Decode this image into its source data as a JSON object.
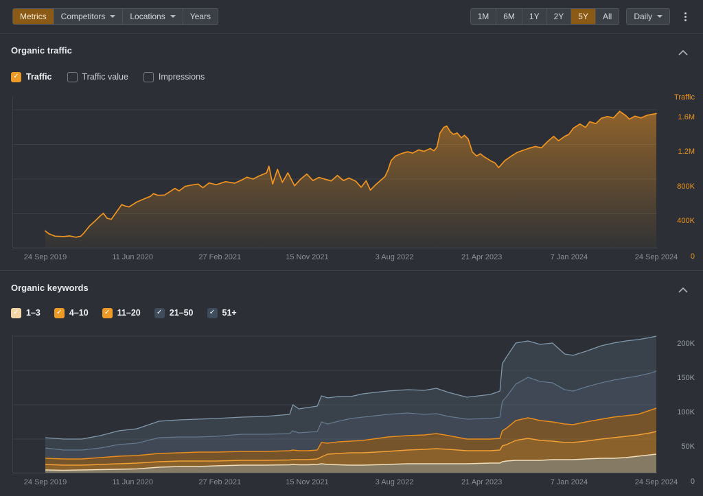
{
  "toolbar": {
    "left_tabs": [
      {
        "label": "Metrics",
        "active": true,
        "caret": false
      },
      {
        "label": "Competitors",
        "active": false,
        "caret": true
      },
      {
        "label": "Locations",
        "active": false,
        "caret": true
      },
      {
        "label": "Years",
        "active": false,
        "caret": false
      }
    ],
    "ranges": [
      {
        "label": "1M",
        "active": false
      },
      {
        "label": "6M",
        "active": false
      },
      {
        "label": "1Y",
        "active": false
      },
      {
        "label": "2Y",
        "active": false
      },
      {
        "label": "5Y",
        "active": true
      },
      {
        "label": "All",
        "active": false
      }
    ],
    "interval_label": "Daily",
    "kebab_icon": "kebab-menu",
    "active_color": "#8a5a16"
  },
  "traffic_section": {
    "title": "Organic traffic",
    "collapse_icon": "chevron-up",
    "checkboxes": [
      {
        "label": "Traffic",
        "checked": true,
        "color": "#ee9a27"
      },
      {
        "label": "Traffic value",
        "checked": false,
        "color": ""
      },
      {
        "label": "Impressions",
        "checked": false,
        "color": ""
      }
    ]
  },
  "keywords_section": {
    "title": "Organic keywords",
    "collapse_icon": "chevron-up",
    "checkboxes": [
      {
        "label": "1–3",
        "checked": true,
        "color": "#f3d6a6"
      },
      {
        "label": "4–10",
        "checked": true,
        "color": "#ee9a27"
      },
      {
        "label": "11–20",
        "checked": true,
        "color": "#ee9a27"
      },
      {
        "label": "21–50",
        "checked": true,
        "color": "#3e4c5b"
      },
      {
        "label": "51+",
        "checked": true,
        "color": "#3e4c5b"
      }
    ]
  },
  "chart_data": [
    {
      "type": "area",
      "title": "Organic traffic",
      "axis_title": "Traffic",
      "accent_color": "#ee9620",
      "grid": true,
      "legend_position": "none",
      "x_tick_labels": [
        "24 Sep 2019",
        "11 Jun 2020",
        "27 Feb 2021",
        "15 Nov 2021",
        "3 Aug 2022",
        "21 Apr 2023",
        "7 Jan 2024",
        "24 Sep 2024"
      ],
      "y_tick_labels": [
        "1.6M",
        "1.2M",
        "800K",
        "400K"
      ],
      "y_tick_values": [
        1600,
        1200,
        800,
        400
      ],
      "zero_label": "0",
      "unit": "thousands",
      "ylim": [
        0,
        1758
      ],
      "series": [
        {
          "name": "Traffic",
          "color": "#f09421",
          "fill_gradient_top": "rgba(240,148,33,0.5)",
          "fill_gradient_bottom": "rgba(240,148,33,0.03)",
          "points": [
            [
              0,
              200
            ],
            [
              0.006,
              168
            ],
            [
              0.016,
              140
            ],
            [
              0.03,
              136
            ],
            [
              0.04,
              143
            ],
            [
              0.05,
              128
            ],
            [
              0.058,
              140
            ],
            [
              0.063,
              176
            ],
            [
              0.072,
              255
            ],
            [
              0.082,
              320
            ],
            [
              0.09,
              375
            ],
            [
              0.095,
              405
            ],
            [
              0.101,
              348
            ],
            [
              0.108,
              335
            ],
            [
              0.116,
              415
            ],
            [
              0.125,
              505
            ],
            [
              0.131,
              488
            ],
            [
              0.137,
              478
            ],
            [
              0.15,
              535
            ],
            [
              0.163,
              575
            ],
            [
              0.172,
              600
            ],
            [
              0.177,
              632
            ],
            [
              0.184,
              612
            ],
            [
              0.195,
              615
            ],
            [
              0.204,
              655
            ],
            [
              0.212,
              692
            ],
            [
              0.219,
              663
            ],
            [
              0.229,
              716
            ],
            [
              0.239,
              730
            ],
            [
              0.25,
              742
            ],
            [
              0.258,
              700
            ],
            [
              0.268,
              755
            ],
            [
              0.28,
              735
            ],
            [
              0.295,
              770
            ],
            [
              0.31,
              752
            ],
            [
              0.322,
              790
            ],
            [
              0.33,
              822
            ],
            [
              0.34,
              800
            ],
            [
              0.35,
              836
            ],
            [
              0.362,
              870
            ],
            [
              0.366,
              948
            ],
            [
              0.372,
              742
            ],
            [
              0.38,
              912
            ],
            [
              0.388,
              762
            ],
            [
              0.397,
              872
            ],
            [
              0.408,
              722
            ],
            [
              0.418,
              800
            ],
            [
              0.428,
              858
            ],
            [
              0.438,
              782
            ],
            [
              0.448,
              820
            ],
            [
              0.457,
              800
            ],
            [
              0.468,
              778
            ],
            [
              0.478,
              842
            ],
            [
              0.488,
              782
            ],
            [
              0.497,
              812
            ],
            [
              0.508,
              775
            ],
            [
              0.517,
              705
            ],
            [
              0.525,
              780
            ],
            [
              0.532,
              672
            ],
            [
              0.54,
              730
            ],
            [
              0.55,
              792
            ],
            [
              0.556,
              828
            ],
            [
              0.561,
              905
            ],
            [
              0.566,
              1012
            ],
            [
              0.573,
              1065
            ],
            [
              0.582,
              1092
            ],
            [
              0.593,
              1115
            ],
            [
              0.601,
              1100
            ],
            [
              0.611,
              1136
            ],
            [
              0.62,
              1120
            ],
            [
              0.63,
              1152
            ],
            [
              0.636,
              1126
            ],
            [
              0.641,
              1168
            ],
            [
              0.646,
              1330
            ],
            [
              0.652,
              1395
            ],
            [
              0.657,
              1412
            ],
            [
              0.663,
              1345
            ],
            [
              0.668,
              1315
            ],
            [
              0.674,
              1332
            ],
            [
              0.681,
              1276
            ],
            [
              0.686,
              1306
            ],
            [
              0.692,
              1262
            ],
            [
              0.699,
              1112
            ],
            [
              0.706,
              1066
            ],
            [
              0.712,
              1092
            ],
            [
              0.718,
              1058
            ],
            [
              0.724,
              1032
            ],
            [
              0.729,
              1010
            ],
            [
              0.736,
              986
            ],
            [
              0.742,
              932
            ],
            [
              0.752,
              1012
            ],
            [
              0.762,
              1062
            ],
            [
              0.772,
              1106
            ],
            [
              0.782,
              1132
            ],
            [
              0.792,
              1156
            ],
            [
              0.802,
              1176
            ],
            [
              0.812,
              1160
            ],
            [
              0.822,
              1232
            ],
            [
              0.832,
              1292
            ],
            [
              0.84,
              1242
            ],
            [
              0.85,
              1292
            ],
            [
              0.857,
              1316
            ],
            [
              0.864,
              1386
            ],
            [
              0.875,
              1436
            ],
            [
              0.884,
              1396
            ],
            [
              0.891,
              1462
            ],
            [
              0.901,
              1440
            ],
            [
              0.91,
              1502
            ],
            [
              0.92,
              1522
            ],
            [
              0.93,
              1506
            ],
            [
              0.94,
              1582
            ],
            [
              0.95,
              1532
            ],
            [
              0.956,
              1492
            ],
            [
              0.965,
              1526
            ],
            [
              0.975,
              1506
            ],
            [
              0.985,
              1536
            ],
            [
              1,
              1556
            ]
          ]
        }
      ]
    },
    {
      "type": "area",
      "stacked": true,
      "title": "Organic keywords",
      "grid": true,
      "legend_position": "none",
      "x_tick_labels": [
        "24 Sep 2019",
        "11 Jun 2020",
        "27 Feb 2021",
        "15 Nov 2021",
        "3 Aug 2022",
        "21 Apr 2023",
        "7 Jan 2024",
        "24 Sep 2024"
      ],
      "y_tick_labels": [
        "200K",
        "150K",
        "100K",
        "50K"
      ],
      "y_tick_values": [
        200,
        150,
        100,
        50
      ],
      "zero_label": "0",
      "unit": "thousands",
      "ylim": [
        0,
        202
      ],
      "label_color": "#9aa1a7",
      "x": [
        0,
        0.03,
        0.06,
        0.09,
        0.12,
        0.15,
        0.186,
        0.22,
        0.25,
        0.28,
        0.3216,
        0.36,
        0.4,
        0.405,
        0.415,
        0.43,
        0.445,
        0.452,
        0.462,
        0.48,
        0.5,
        0.52,
        0.56,
        0.5932,
        0.62,
        0.64,
        0.66,
        0.69,
        0.7284,
        0.744,
        0.748,
        0.755,
        0.77,
        0.79,
        0.81,
        0.83,
        0.85,
        0.8637,
        0.885,
        0.91,
        0.93,
        0.95,
        0.97,
        0.99,
        1
      ],
      "series": [
        {
          "name": "1–3",
          "line_color": "#f2debb",
          "fill_color": "rgba(242,214,160,0.45)",
          "cumulative": [
            5,
            4.5,
            5,
            5.5,
            6,
            6.5,
            9,
            10,
            10,
            11,
            12,
            12,
            12.5,
            13,
            12.5,
            12.5,
            13,
            14,
            13,
            12.5,
            12,
            12,
            13,
            14,
            14,
            14,
            14,
            14,
            15,
            15,
            17,
            18,
            19,
            19,
            19,
            20,
            20,
            20,
            21,
            22,
            22,
            23,
            25,
            27,
            28
          ]
        },
        {
          "name": "4–10",
          "line_color": "#f2a035",
          "fill_color": "rgba(240,150,30,0.48)",
          "cumulative": [
            13,
            12,
            12,
            13,
            14,
            15,
            17,
            18,
            18,
            18,
            19,
            19,
            19.5,
            20,
            20,
            20,
            21,
            24,
            28,
            29,
            30,
            30,
            32,
            34,
            35,
            36,
            35,
            33,
            33,
            34,
            40,
            42,
            48,
            51,
            48,
            47,
            45,
            45,
            47,
            50,
            52,
            54,
            56,
            59,
            61
          ]
        },
        {
          "name": "11–20",
          "line_color": "#e98d1d",
          "fill_color": "rgba(237,144,28,0.38)",
          "cumulative": [
            22,
            21,
            21,
            23,
            25,
            26,
            29,
            30,
            31,
            31,
            32,
            32,
            33,
            34,
            33,
            33,
            34,
            45,
            44,
            46,
            47,
            48,
            53,
            55,
            56,
            58,
            55,
            50,
            50,
            51,
            62,
            66,
            77,
            81,
            77,
            75,
            72,
            71,
            75,
            79,
            82,
            84,
            86,
            92,
            95
          ]
        },
        {
          "name": "21–50",
          "line_color": "#64798f",
          "fill_color": "rgba(125,152,179,0.24)",
          "cumulative": [
            37,
            34,
            34,
            37,
            42,
            44,
            52,
            53,
            53,
            54,
            57,
            57,
            58,
            62,
            59,
            60,
            61,
            75,
            72,
            76,
            80,
            82,
            86,
            88,
            86,
            87,
            83,
            79,
            80,
            82,
            105,
            112,
            130,
            140,
            134,
            132,
            122,
            120,
            126,
            132,
            136,
            139,
            142,
            146,
            149
          ]
        },
        {
          "name": "51+",
          "line_color": "#8298ac",
          "fill_color": "rgba(125,152,179,0.17)",
          "cumulative": [
            52,
            50,
            50,
            55,
            62,
            65,
            76,
            78,
            79,
            80,
            82,
            83,
            86,
            100,
            94,
            96,
            98,
            113,
            110,
            112,
            112,
            116,
            120,
            122,
            121,
            124,
            118,
            111,
            115,
            120,
            160,
            170,
            190,
            193,
            188,
            190,
            174,
            172,
            178,
            186,
            190,
            193,
            195,
            198,
            200
          ]
        }
      ]
    }
  ]
}
